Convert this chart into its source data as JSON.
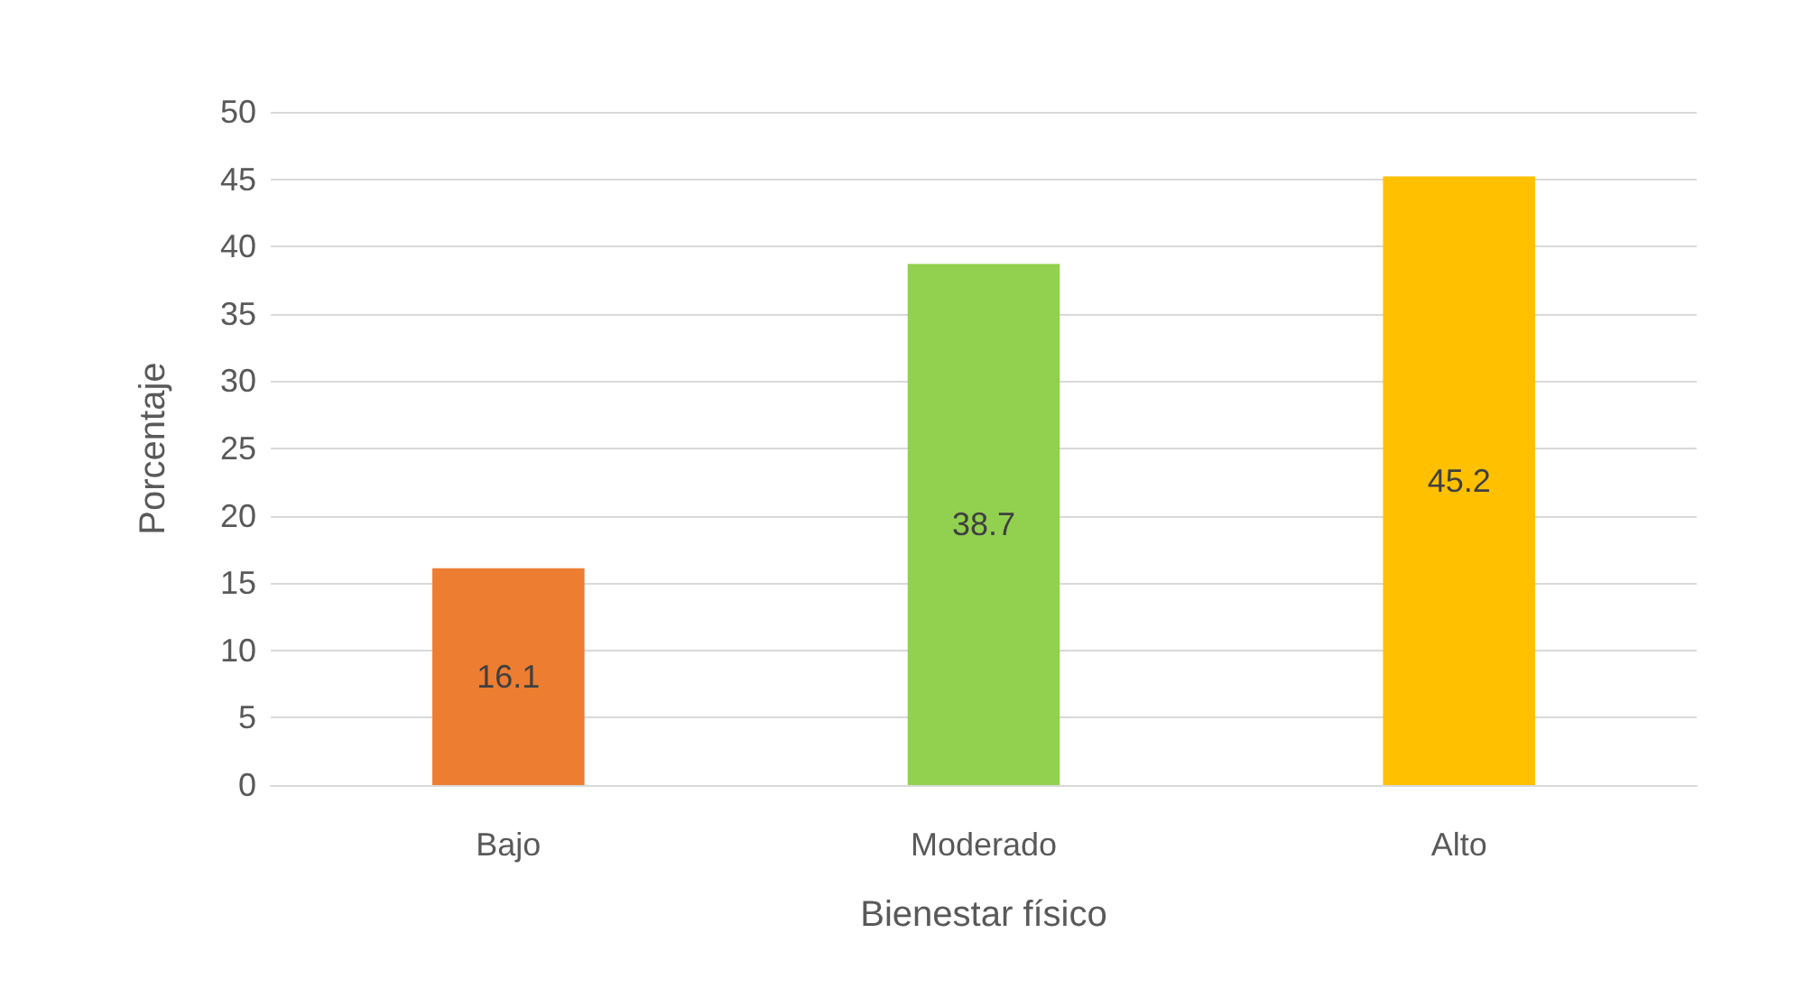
{
  "chart_data": {
    "type": "bar",
    "xlabel": "Bienestar físico",
    "ylabel": "Porcentaje",
    "categories": [
      "Bajo",
      "Moderado",
      "Alto"
    ],
    "values": [
      16.1,
      38.7,
      45.2
    ],
    "colors": [
      "#ed7d31",
      "#92d050",
      "#ffc000"
    ],
    "ylim": [
      0,
      50
    ],
    "yticks": [
      0,
      5,
      10,
      15,
      20,
      25,
      30,
      35,
      40,
      45,
      50
    ],
    "grid": true,
    "data_labels": true
  }
}
